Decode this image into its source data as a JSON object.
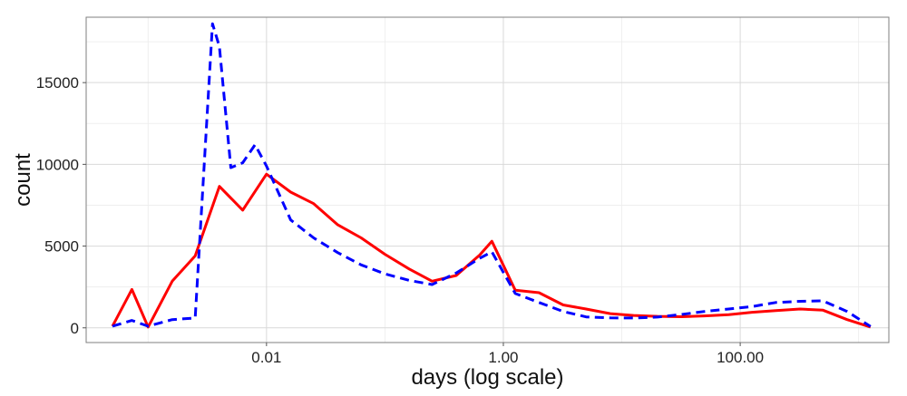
{
  "chart_data": {
    "type": "line",
    "title": "",
    "xlabel": "days (log scale)",
    "ylabel": "count",
    "x_scale": "log10",
    "xlim": [
      0.0003,
      1800
    ],
    "ylim": [
      -900,
      19000
    ],
    "x_ticks": [
      {
        "value": 0.01,
        "label": "0.01"
      },
      {
        "value": 1,
        "label": "1.00"
      },
      {
        "value": 100,
        "label": "100.00"
      }
    ],
    "y_ticks": [
      {
        "value": 0,
        "label": "0"
      },
      {
        "value": 5000,
        "label": "5000"
      },
      {
        "value": 10000,
        "label": "10000"
      },
      {
        "value": 15000,
        "label": "15000"
      }
    ],
    "grid": true,
    "legend": "none",
    "series": [
      {
        "color": "#ff0000",
        "line_style": "solid",
        "x": [
          0.0005,
          0.00073,
          0.001,
          0.0016,
          0.0025,
          0.004,
          0.0063,
          0.01,
          0.016,
          0.025,
          0.04,
          0.063,
          0.1,
          0.16,
          0.25,
          0.4,
          0.63,
          0.8,
          1.26,
          2,
          3.2,
          5,
          8,
          12.6,
          20,
          32,
          50,
          80,
          126,
          200,
          320,
          500,
          800,
          1260
        ],
        "values": [
          100,
          2350,
          50,
          2850,
          4400,
          8650,
          7200,
          9400,
          8300,
          7600,
          6300,
          5500,
          4500,
          3600,
          2850,
          3200,
          4450,
          5300,
          2300,
          2150,
          1400,
          1150,
          870,
          760,
          700,
          680,
          730,
          810,
          950,
          1050,
          1150,
          1080,
          500,
          50
        ]
      },
      {
        "color": "#0000ff",
        "line_style": "dashed",
        "x": [
          0.0005,
          0.00073,
          0.001,
          0.0016,
          0.0025,
          0.0035,
          0.004,
          0.005,
          0.0063,
          0.008,
          0.01,
          0.016,
          0.025,
          0.04,
          0.063,
          0.1,
          0.16,
          0.25,
          0.4,
          0.63,
          0.8,
          1.26,
          2,
          3.2,
          5,
          8,
          12.6,
          20,
          32,
          50,
          80,
          126,
          200,
          320,
          500,
          800,
          1260
        ],
        "values": [
          100,
          450,
          100,
          500,
          600,
          18600,
          17200,
          9800,
          10100,
          11200,
          9900,
          6600,
          5500,
          4600,
          3850,
          3300,
          2900,
          2650,
          3350,
          4250,
          4650,
          2100,
          1550,
          1000,
          670,
          610,
          600,
          660,
          820,
          1000,
          1150,
          1300,
          1550,
          1620,
          1650,
          1000,
          80
        ]
      }
    ]
  }
}
